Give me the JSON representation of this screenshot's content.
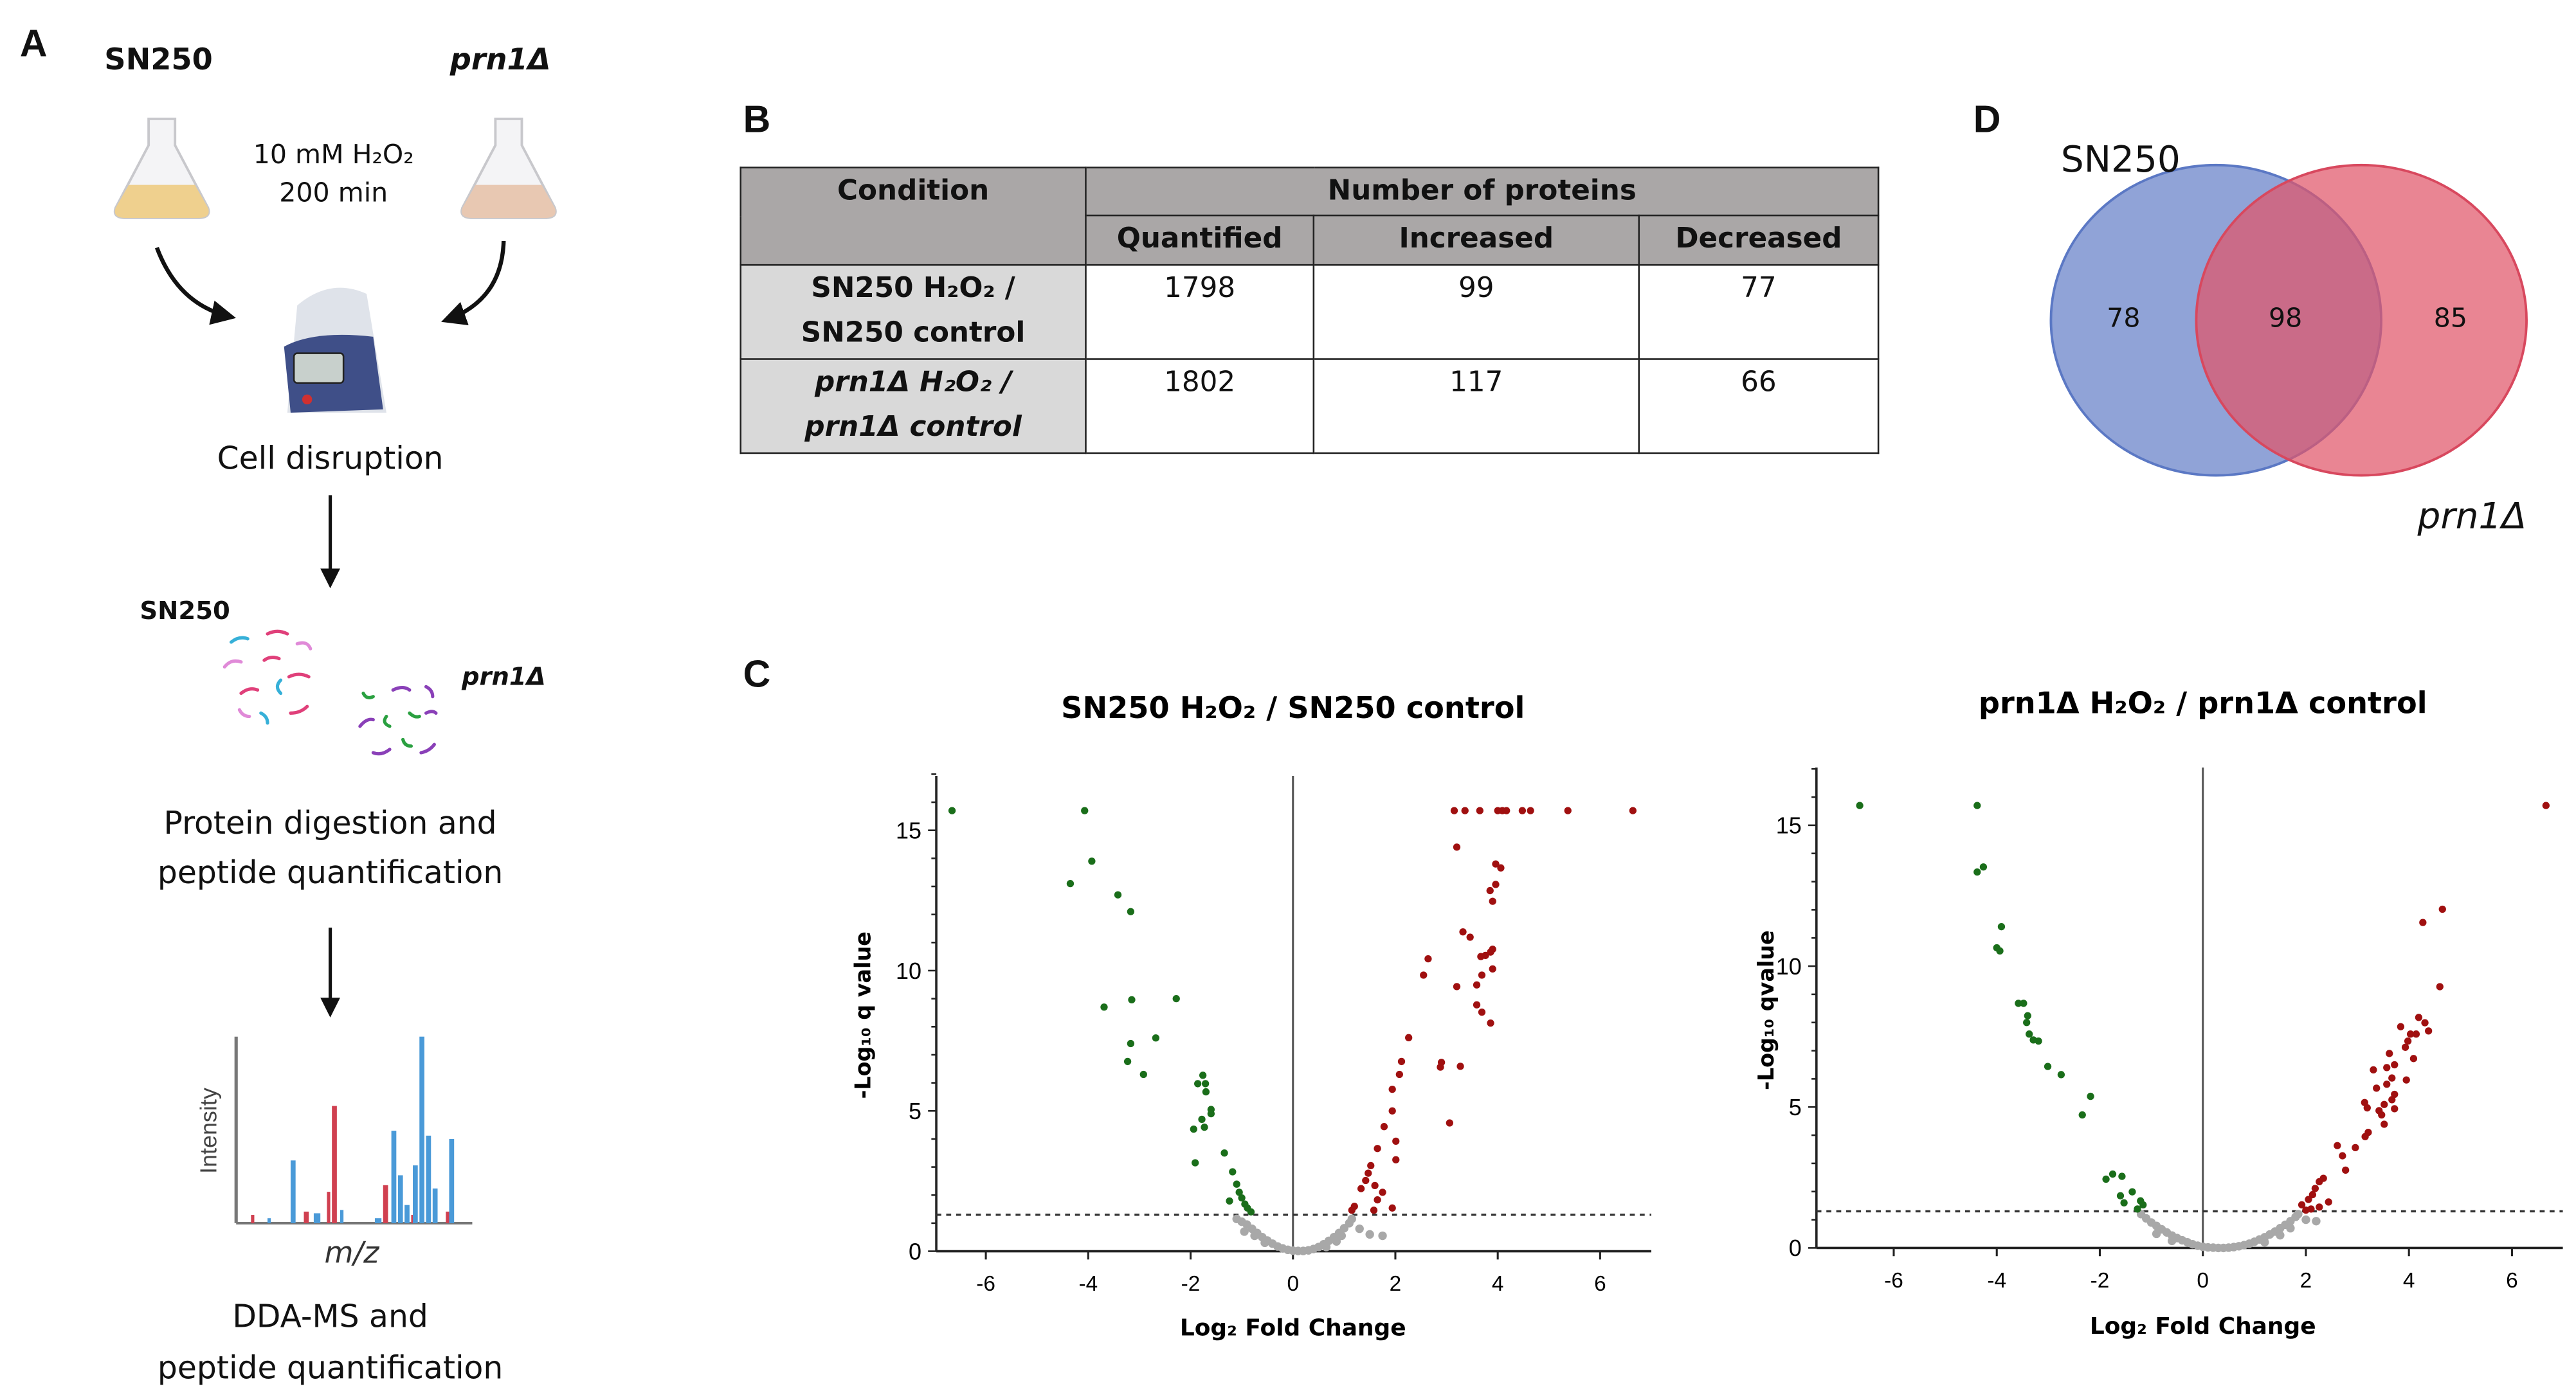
{
  "panel_letters": {
    "a": "A",
    "b": "B",
    "c": "C",
    "d": "D"
  },
  "workflow": {
    "strain_1": "SN250",
    "strain_2": "prn1Δ",
    "treatment_line1": "10 mM H₂O₂",
    "treatment_line2": "200 min",
    "step_1": "Cell disruption",
    "digest_strain_1": "SN250",
    "digest_strain_2": "prn1Δ",
    "step_2_line1": "Protein digestion and",
    "step_2_line2": "peptide quantification",
    "spectrum_ylabel": "Intensity",
    "spectrum_xlabel": "m/z",
    "step_3_line1": "DDA-MS and",
    "step_3_line2": "peptide quantification"
  },
  "table": {
    "header_condition": "Condition",
    "header_group": "Number of proteins",
    "columns": [
      "Quantified",
      "Increased",
      "Decreased"
    ],
    "rows": [
      {
        "condition_line1": "SN250 H₂O₂ /",
        "condition_line2": "SN250 control",
        "values": [
          "1798",
          "99",
          "77"
        ]
      },
      {
        "condition_line1": "prn1Δ H₂O₂ /",
        "condition_line2": "prn1Δ control",
        "values": [
          "1802",
          "117",
          "66"
        ]
      }
    ]
  },
  "venn": {
    "label_left": "SN250",
    "label_right": "prn1Δ",
    "only_left": "78",
    "overlap": "98",
    "only_right": "85",
    "color_left": "#5b78c4",
    "color_right": "#e0566a"
  },
  "chart_data": [
    {
      "type": "scatter",
      "title": "SN250 H₂O₂ / SN250 control",
      "xlabel": "Log₂ Fold Change",
      "ylabel": "-Log₁₀ q value",
      "xlim": [
        -7,
        7
      ],
      "ylim": [
        0,
        17
      ],
      "xticks": [
        "-6",
        "-4",
        "-2",
        "0",
        "2",
        "4",
        "6"
      ],
      "yticks": [
        "0",
        "5",
        "10",
        "15"
      ],
      "threshold_y": 1.3,
      "colors": {
        "decreased": "#1a6e1a",
        "increased": "#a01010",
        "ns": "#a8a8a8"
      },
      "decreased": [
        [
          -6.66,
          15.7
        ],
        [
          -4.07,
          15.7
        ],
        [
          -3.93,
          13.9
        ],
        [
          -4.35,
          13.1
        ],
        [
          -3.42,
          12.7
        ],
        [
          -3.17,
          12.1
        ],
        [
          -3.15,
          8.96
        ],
        [
          -2.28,
          9.0
        ],
        [
          -3.69,
          8.7
        ],
        [
          -2.68,
          7.6
        ],
        [
          -3.17,
          7.4
        ],
        [
          -3.23,
          6.76
        ],
        [
          -2.92,
          6.3
        ],
        [
          -1.76,
          6.27
        ],
        [
          -1.86,
          5.97
        ],
        [
          -1.71,
          5.97
        ],
        [
          -1.7,
          5.68
        ],
        [
          -1.6,
          5.05
        ],
        [
          -1.6,
          4.9
        ],
        [
          -1.78,
          4.7
        ],
        [
          -1.94,
          4.35
        ],
        [
          -1.73,
          4.42
        ],
        [
          -1.34,
          3.5
        ],
        [
          -1.91,
          3.15
        ],
        [
          -1.18,
          2.83
        ],
        [
          -1.1,
          2.39
        ],
        [
          -1.05,
          2.1
        ],
        [
          -1.24,
          1.79
        ],
        [
          -1.0,
          1.9
        ],
        [
          -0.89,
          1.54
        ],
        [
          -0.82,
          1.4
        ],
        [
          -0.94,
          1.68
        ]
      ],
      "increased": [
        [
          3.15,
          15.7
        ],
        [
          3.36,
          15.7
        ],
        [
          3.65,
          15.7
        ],
        [
          4.0,
          15.7
        ],
        [
          4.09,
          15.7
        ],
        [
          4.17,
          15.7
        ],
        [
          4.48,
          15.7
        ],
        [
          4.64,
          15.7
        ],
        [
          5.37,
          15.7
        ],
        [
          6.64,
          15.7
        ],
        [
          3.2,
          14.4
        ],
        [
          3.96,
          13.8
        ],
        [
          4.06,
          13.66
        ],
        [
          3.96,
          13.07
        ],
        [
          3.85,
          12.85
        ],
        [
          3.9,
          12.47
        ],
        [
          3.32,
          11.38
        ],
        [
          3.46,
          11.19
        ],
        [
          3.9,
          10.76
        ],
        [
          3.86,
          10.66
        ],
        [
          3.67,
          10.5
        ],
        [
          3.76,
          10.54
        ],
        [
          2.64,
          10.42
        ],
        [
          2.55,
          9.84
        ],
        [
          3.9,
          10.06
        ],
        [
          3.69,
          9.84
        ],
        [
          3.2,
          9.43
        ],
        [
          3.59,
          9.49
        ],
        [
          3.59,
          8.78
        ],
        [
          3.69,
          8.52
        ],
        [
          3.86,
          8.13
        ],
        [
          2.26,
          7.61
        ],
        [
          2.12,
          6.76
        ],
        [
          2.08,
          6.3
        ],
        [
          2.9,
          6.73
        ],
        [
          2.88,
          6.56
        ],
        [
          3.27,
          6.59
        ],
        [
          1.94,
          5.77
        ],
        [
          1.94,
          5.0
        ],
        [
          1.78,
          4.44
        ],
        [
          3.06,
          4.57
        ],
        [
          2.01,
          3.92
        ],
        [
          1.65,
          3.66
        ],
        [
          2.01,
          3.26
        ],
        [
          1.52,
          3.05
        ],
        [
          1.47,
          2.78
        ],
        [
          1.42,
          2.52
        ],
        [
          1.33,
          2.23
        ],
        [
          1.6,
          2.34
        ],
        [
          1.75,
          2.1
        ],
        [
          1.65,
          1.83
        ],
        [
          1.94,
          1.54
        ],
        [
          1.58,
          1.46
        ],
        [
          1.2,
          1.6
        ],
        [
          1.15,
          1.46
        ]
      ],
      "not_significant": [
        [
          -1.1,
          1.15
        ],
        [
          -1.0,
          1.05
        ],
        [
          -0.9,
          0.95
        ],
        [
          -0.8,
          0.8
        ],
        [
          -0.7,
          0.65
        ],
        [
          -0.6,
          0.5
        ],
        [
          -0.5,
          0.38
        ],
        [
          -0.4,
          0.27
        ],
        [
          -0.3,
          0.17
        ],
        [
          -0.2,
          0.1
        ],
        [
          -0.1,
          0.05
        ],
        [
          0.0,
          0.02
        ],
        [
          0.1,
          0.01
        ],
        [
          0.2,
          0.01
        ],
        [
          0.3,
          0.03
        ],
        [
          0.4,
          0.08
        ],
        [
          0.5,
          0.15
        ],
        [
          0.6,
          0.25
        ],
        [
          0.7,
          0.37
        ],
        [
          0.8,
          0.5
        ],
        [
          0.9,
          0.65
        ],
        [
          1.0,
          0.82
        ],
        [
          1.1,
          1.0
        ],
        [
          1.15,
          1.15
        ],
        [
          1.3,
          0.8
        ],
        [
          1.5,
          0.6
        ],
        [
          1.75,
          0.55
        ],
        [
          -0.95,
          0.7
        ],
        [
          -0.75,
          0.55
        ],
        [
          0.95,
          0.55
        ],
        [
          0.85,
          0.35
        ],
        [
          -0.55,
          0.3
        ],
        [
          0.65,
          0.15
        ]
      ]
    },
    {
      "type": "scatter",
      "title": "prn1Δ H₂O₂ / prn1Δ control",
      "xlabel": "Log₂ Fold Change",
      "ylabel": "-Log₁₀ qvalue",
      "xlim": [
        -7,
        7
      ],
      "ylim": [
        0,
        17
      ],
      "xticks": [
        "-6",
        "-4",
        "-2",
        "0",
        "2",
        "4",
        "6"
      ],
      "yticks": [
        "0",
        "5",
        "10",
        "15"
      ],
      "threshold_y": 1.3,
      "colors": {
        "decreased": "#1a6e1a",
        "increased": "#a01010",
        "ns": "#a8a8a8"
      },
      "decreased": [
        [
          -6.66,
          15.7
        ],
        [
          -4.38,
          15.7
        ],
        [
          -4.26,
          13.52
        ],
        [
          -4.38,
          13.34
        ],
        [
          -3.91,
          11.4
        ],
        [
          -4.0,
          10.65
        ],
        [
          -3.94,
          10.54
        ],
        [
          -3.58,
          8.68
        ],
        [
          -3.48,
          8.68
        ],
        [
          -3.4,
          8.24
        ],
        [
          -3.42,
          8.0
        ],
        [
          -3.37,
          7.59
        ],
        [
          -3.29,
          7.38
        ],
        [
          -3.19,
          7.34
        ],
        [
          -3.01,
          6.44
        ],
        [
          -2.75,
          6.15
        ],
        [
          -2.18,
          5.38
        ],
        [
          -2.34,
          4.72
        ],
        [
          -1.88,
          2.44
        ],
        [
          -1.75,
          2.62
        ],
        [
          -1.57,
          2.54
        ],
        [
          -1.37,
          1.99
        ],
        [
          -1.6,
          1.85
        ],
        [
          -1.53,
          1.6
        ],
        [
          -1.21,
          1.67
        ],
        [
          -1.27,
          1.38
        ],
        [
          -1.16,
          1.53
        ]
      ],
      "increased": [
        [
          6.66,
          15.7
        ],
        [
          4.65,
          12.02
        ],
        [
          4.27,
          11.55
        ],
        [
          4.6,
          9.27
        ],
        [
          4.19,
          8.18
        ],
        [
          4.31,
          7.99
        ],
        [
          4.38,
          7.7
        ],
        [
          3.84,
          7.85
        ],
        [
          4.14,
          7.59
        ],
        [
          4.03,
          7.59
        ],
        [
          3.98,
          7.34
        ],
        [
          3.93,
          7.12
        ],
        [
          3.62,
          6.9
        ],
        [
          4.09,
          6.72
        ],
        [
          3.31,
          6.32
        ],
        [
          3.57,
          6.4
        ],
        [
          3.72,
          6.5
        ],
        [
          3.67,
          6.03
        ],
        [
          3.95,
          5.96
        ],
        [
          3.57,
          5.81
        ],
        [
          3.37,
          5.67
        ],
        [
          3.72,
          5.45
        ],
        [
          3.67,
          5.26
        ],
        [
          3.14,
          5.16
        ],
        [
          3.19,
          4.97
        ],
        [
          3.52,
          5.09
        ],
        [
          3.42,
          4.87
        ],
        [
          3.72,
          4.94
        ],
        [
          3.47,
          4.72
        ],
        [
          3.52,
          4.39
        ],
        [
          3.21,
          4.1
        ],
        [
          3.15,
          3.95
        ],
        [
          2.96,
          3.56
        ],
        [
          2.61,
          3.63
        ],
        [
          2.71,
          3.27
        ],
        [
          2.77,
          2.76
        ],
        [
          2.34,
          2.47
        ],
        [
          2.26,
          2.35
        ],
        [
          2.18,
          2.11
        ],
        [
          2.13,
          1.89
        ],
        [
          2.05,
          1.72
        ],
        [
          2.44,
          1.63
        ],
        [
          1.92,
          1.53
        ],
        [
          2.26,
          1.45
        ],
        [
          2.0,
          1.34
        ],
        [
          2.1,
          1.38
        ]
      ],
      "not_significant": [
        [
          -1.2,
          1.2
        ],
        [
          -1.1,
          1.05
        ],
        [
          -1.0,
          0.9
        ],
        [
          -0.9,
          0.78
        ],
        [
          -0.8,
          0.66
        ],
        [
          -0.7,
          0.55
        ],
        [
          -0.6,
          0.44
        ],
        [
          -0.5,
          0.35
        ],
        [
          -0.4,
          0.27
        ],
        [
          -0.3,
          0.2
        ],
        [
          -0.2,
          0.13
        ],
        [
          -0.1,
          0.08
        ],
        [
          0.0,
          0.04
        ],
        [
          0.1,
          0.02
        ],
        [
          0.2,
          0.01
        ],
        [
          0.3,
          0.0
        ],
        [
          0.4,
          0.0
        ],
        [
          0.5,
          0.01
        ],
        [
          0.6,
          0.03
        ],
        [
          0.7,
          0.06
        ],
        [
          0.8,
          0.1
        ],
        [
          0.9,
          0.15
        ],
        [
          1.0,
          0.22
        ],
        [
          1.1,
          0.3
        ],
        [
          1.2,
          0.38
        ],
        [
          1.3,
          0.48
        ],
        [
          1.4,
          0.58
        ],
        [
          1.5,
          0.7
        ],
        [
          1.6,
          0.82
        ],
        [
          1.7,
          0.95
        ],
        [
          1.8,
          1.1
        ],
        [
          1.85,
          1.2
        ],
        [
          2.0,
          1.0
        ],
        [
          2.2,
          0.95
        ],
        [
          -0.9,
          0.5
        ],
        [
          1.5,
          0.45
        ],
        [
          1.7,
          0.7
        ],
        [
          -0.6,
          0.25
        ],
        [
          1.2,
          0.2
        ]
      ]
    }
  ]
}
